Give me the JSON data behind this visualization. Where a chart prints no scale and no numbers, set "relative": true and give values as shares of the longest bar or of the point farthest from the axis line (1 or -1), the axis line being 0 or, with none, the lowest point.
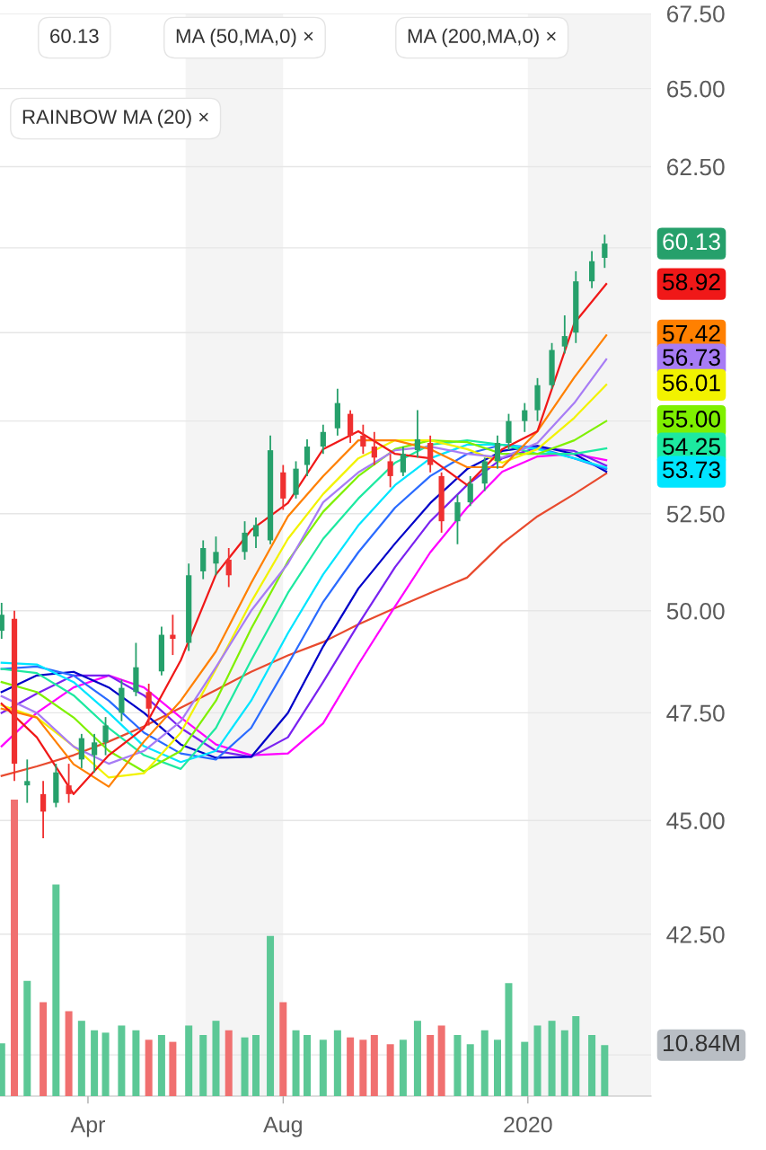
{
  "chart_data": [
    {
      "type": "candlestick",
      "x": [
        "2019-02-06",
        "2019-02-14",
        "2019-02-22",
        "2019-03-04",
        "2019-03-12",
        "2019-03-20",
        "2019-03-28",
        "2019-04-05",
        "2019-04-12",
        "2019-04-22",
        "2019-05-01",
        "2019-05-09",
        "2019-05-17",
        "2019-05-24",
        "2019-06-03",
        "2019-06-12",
        "2019-06-20",
        "2019-06-28",
        "2019-07-08",
        "2019-07-15",
        "2019-07-24",
        "2019-08-01",
        "2019-08-09",
        "2019-08-16",
        "2019-08-26",
        "2019-09-04",
        "2019-09-12",
        "2019-09-20",
        "2019-09-27",
        "2019-10-07",
        "2019-10-15",
        "2019-10-24",
        "2019-11-01",
        "2019-11-08",
        "2019-11-18",
        "2019-11-26",
        "2019-12-05",
        "2019-12-13",
        "2019-12-20",
        "2019-12-30",
        "2020-01-07",
        "2020-01-16",
        "2020-01-24",
        "2020-01-31",
        "2020-02-10",
        "2020-02-18"
      ],
      "ohlc": [
        [
          49.5,
          50.2,
          49.3,
          49.9
        ],
        [
          49.8,
          50.0,
          45.9,
          46.3
        ],
        [
          45.8,
          46.4,
          45.4,
          45.9
        ],
        [
          45.6,
          45.9,
          44.6,
          45.2
        ],
        [
          45.4,
          46.3,
          45.3,
          46.1
        ],
        [
          45.8,
          46.3,
          45.4,
          45.6
        ],
        [
          46.4,
          47.0,
          46.2,
          46.9
        ],
        [
          46.5,
          47.0,
          46.1,
          46.8
        ],
        [
          46.8,
          47.4,
          46.5,
          47.2
        ],
        [
          47.5,
          48.3,
          47.3,
          48.1
        ],
        [
          48.0,
          49.2,
          47.9,
          48.6
        ],
        [
          48.0,
          48.2,
          47.2,
          47.6
        ],
        [
          48.5,
          49.6,
          48.4,
          49.4
        ],
        [
          49.4,
          49.9,
          48.9,
          49.3
        ],
        [
          49.2,
          51.2,
          49.0,
          50.9
        ],
        [
          51.0,
          51.8,
          50.8,
          51.6
        ],
        [
          51.2,
          51.9,
          50.9,
          51.5
        ],
        [
          51.3,
          51.6,
          50.6,
          50.9
        ],
        [
          51.5,
          52.3,
          51.3,
          52.0
        ],
        [
          51.9,
          52.4,
          51.6,
          52.2
        ],
        [
          51.8,
          54.6,
          51.7,
          54.2
        ],
        [
          53.6,
          53.8,
          52.6,
          52.9
        ],
        [
          53.0,
          53.9,
          52.9,
          53.7
        ],
        [
          53.8,
          54.5,
          53.5,
          54.3
        ],
        [
          54.3,
          54.9,
          54.1,
          54.7
        ],
        [
          54.8,
          55.9,
          54.6,
          55.5
        ],
        [
          55.2,
          55.3,
          54.4,
          54.6
        ],
        [
          54.6,
          54.9,
          54.1,
          54.3
        ],
        [
          54.3,
          54.7,
          53.8,
          54.0
        ],
        [
          53.9,
          54.1,
          53.2,
          53.5
        ],
        [
          53.6,
          54.3,
          53.5,
          54.1
        ],
        [
          54.2,
          55.3,
          54.0,
          54.5
        ],
        [
          54.4,
          54.6,
          53.6,
          53.8
        ],
        [
          53.5,
          53.6,
          52.0,
          52.3
        ],
        [
          52.3,
          53.0,
          51.7,
          52.8
        ],
        [
          52.8,
          53.5,
          52.7,
          53.3
        ],
        [
          53.3,
          54.0,
          53.1,
          53.9
        ],
        [
          53.9,
          54.6,
          53.7,
          54.4
        ],
        [
          54.4,
          55.2,
          54.2,
          55.0
        ],
        [
          55.0,
          55.5,
          54.7,
          55.3
        ],
        [
          55.3,
          56.2,
          55.0,
          56.0
        ],
        [
          56.0,
          57.2,
          55.9,
          57.0
        ],
        [
          57.1,
          58.0,
          56.9,
          57.4
        ],
        [
          57.5,
          59.3,
          57.2,
          59.0
        ],
        [
          59.0,
          59.9,
          58.8,
          59.6
        ],
        [
          59.7,
          60.4,
          59.4,
          60.13
        ]
      ],
      "colors": [
        "#26a06b",
        "#ef3030",
        "#26a06b",
        "#ef3030",
        "#26a06b",
        "#ef3030",
        "#26a06b",
        "#26a06b",
        "#26a06b",
        "#26a06b",
        "#26a06b",
        "#ef3030",
        "#26a06b",
        "#ef3030",
        "#26a06b",
        "#26a06b",
        "#26a06b",
        "#ef3030",
        "#26a06b",
        "#26a06b",
        "#26a06b",
        "#ef3030",
        "#26a06b",
        "#26a06b",
        "#26a06b",
        "#26a06b",
        "#ef3030",
        "#ef3030",
        "#ef3030",
        "#ef3030",
        "#26a06b",
        "#26a06b",
        "#ef3030",
        "#ef3030",
        "#26a06b",
        "#26a06b",
        "#26a06b",
        "#26a06b",
        "#26a06b",
        "#26a06b",
        "#26a06b",
        "#26a06b",
        "#26a06b",
        "#26a06b",
        "#26a06b",
        "#26a06b"
      ],
      "series": [
        {
          "type": "line",
          "color": "#e84a2e",
          "x": [
            "2019-02-06",
            "2019-02-28",
            "2019-03-23",
            "2019-04-14",
            "2019-05-06",
            "2019-05-29",
            "2019-06-20",
            "2019-07-12",
            "2019-08-04",
            "2019-08-26",
            "2019-09-17",
            "2019-10-10",
            "2019-11-01",
            "2019-11-24",
            "2019-12-16",
            "2020-01-07",
            "2020-01-30",
            "2020-02-19"
          ],
          "values": [
            46.02,
            46.24,
            46.5,
            46.82,
            47.18,
            47.62,
            48.05,
            48.49,
            48.89,
            49.22,
            49.66,
            50.07,
            50.45,
            50.84,
            51.72,
            52.43,
            53.02,
            53.57
          ]
        },
        {
          "type": "line",
          "color": "#ff00ff",
          "x": [
            "2019-02-06",
            "2019-02-28",
            "2019-03-23",
            "2019-04-14",
            "2019-05-06",
            "2019-05-29",
            "2019-06-20",
            "2019-07-12",
            "2019-08-04",
            "2019-08-26",
            "2019-09-17",
            "2019-10-10",
            "2019-11-01",
            "2019-11-24",
            "2019-12-16",
            "2020-01-07",
            "2020-01-30",
            "2020-02-19"
          ],
          "values": [
            46.71,
            47.5,
            48.11,
            48.4,
            48.11,
            47.39,
            46.75,
            46.5,
            46.54,
            47.25,
            48.67,
            50.11,
            51.49,
            52.66,
            53.62,
            54.03,
            54.1,
            53.93
          ]
        },
        {
          "type": "line",
          "color": "#7a22f0",
          "x": [
            "2019-02-06",
            "2019-02-28",
            "2019-03-23",
            "2019-04-14",
            "2019-05-06",
            "2019-05-29",
            "2019-06-20",
            "2019-07-12",
            "2019-08-04",
            "2019-08-26",
            "2019-09-17",
            "2019-10-10",
            "2019-11-01",
            "2019-11-24",
            "2019-12-16",
            "2020-01-07",
            "2020-01-30",
            "2020-02-19"
          ],
          "values": [
            47.5,
            47.96,
            48.4,
            48.4,
            47.92,
            47.14,
            46.6,
            46.46,
            46.92,
            48.24,
            49.66,
            51.11,
            52.3,
            53.26,
            53.98,
            54.27,
            54.18,
            53.78
          ]
        },
        {
          "type": "line",
          "color": "#0000c8",
          "x": [
            "2019-02-06",
            "2019-02-28",
            "2019-03-23",
            "2019-04-14",
            "2019-05-06",
            "2019-05-29",
            "2019-06-20",
            "2019-07-12",
            "2019-08-04",
            "2019-08-26",
            "2019-09-17",
            "2019-10-10",
            "2019-11-01",
            "2019-11-24",
            "2019-12-16",
            "2020-01-07",
            "2020-01-30",
            "2020-02-19"
          ],
          "values": [
            48.0,
            48.4,
            48.49,
            48.11,
            47.5,
            46.75,
            46.44,
            46.46,
            47.5,
            49.11,
            50.56,
            51.72,
            52.78,
            53.69,
            54.18,
            54.32,
            54.1,
            53.62
          ]
        },
        {
          "type": "line",
          "color": "#2a6bff",
          "x": [
            "2019-02-06",
            "2019-02-28",
            "2019-03-23",
            "2019-04-14",
            "2019-05-06",
            "2019-05-29",
            "2019-06-20",
            "2019-07-12",
            "2019-08-04",
            "2019-08-26",
            "2019-09-17",
            "2019-10-10",
            "2019-11-01",
            "2019-11-24",
            "2019-12-16",
            "2020-01-07",
            "2020-01-30",
            "2020-02-19"
          ],
          "values": [
            48.56,
            48.62,
            48.4,
            47.79,
            47.03,
            46.54,
            46.4,
            47.14,
            48.67,
            50.22,
            51.49,
            52.66,
            53.5,
            54.1,
            54.35,
            54.27,
            53.98,
            53.69
          ]
        },
        {
          "type": "line",
          "color": "#00e5ff",
          "x": [
            "2019-02-06",
            "2019-02-28",
            "2019-03-23",
            "2019-04-14",
            "2019-05-06",
            "2019-05-29",
            "2019-06-20",
            "2019-07-12",
            "2019-08-04",
            "2019-08-26",
            "2019-09-17",
            "2019-10-10",
            "2019-11-01",
            "2019-11-24",
            "2019-12-16",
            "2020-01-07",
            "2020-01-30",
            "2020-02-19"
          ],
          "values": [
            48.71,
            48.67,
            48.24,
            47.5,
            46.71,
            46.34,
            46.6,
            47.79,
            49.44,
            50.92,
            52.19,
            53.26,
            53.98,
            54.35,
            54.35,
            54.23,
            53.98,
            53.73
          ]
        },
        {
          "type": "line",
          "color": "#1de9a0",
          "x": [
            "2019-02-06",
            "2019-02-28",
            "2019-03-23",
            "2019-04-14",
            "2019-05-06",
            "2019-05-29",
            "2019-06-20",
            "2019-07-12",
            "2019-08-04",
            "2019-08-26",
            "2019-09-17",
            "2019-10-10",
            "2019-11-01",
            "2019-11-24",
            "2019-12-16",
            "2020-01-07",
            "2020-01-30",
            "2020-02-19"
          ],
          "values": [
            48.56,
            48.46,
            47.92,
            47.14,
            46.5,
            46.18,
            47.14,
            48.77,
            50.45,
            51.84,
            52.9,
            53.86,
            54.35,
            54.47,
            54.35,
            54.1,
            54.1,
            54.25
          ]
        },
        {
          "type": "line",
          "color": "#7ff000",
          "x": [
            "2019-02-06",
            "2019-02-28",
            "2019-03-23",
            "2019-04-14",
            "2019-05-06",
            "2019-05-29",
            "2019-06-20",
            "2019-07-12",
            "2019-08-04",
            "2019-08-26",
            "2019-09-17",
            "2019-10-10",
            "2019-11-01",
            "2019-11-24",
            "2019-12-16",
            "2020-01-07",
            "2020-01-30",
            "2020-02-19"
          ],
          "values": [
            48.24,
            48.0,
            47.39,
            46.6,
            46.12,
            46.6,
            47.79,
            49.55,
            51.26,
            52.55,
            53.5,
            54.23,
            54.47,
            54.42,
            54.1,
            54.1,
            54.47,
            55.0
          ]
        },
        {
          "type": "line",
          "color": "#f2f200",
          "x": [
            "2019-02-06",
            "2019-02-28",
            "2019-03-23",
            "2019-04-14",
            "2019-05-06",
            "2019-05-29",
            "2019-06-20",
            "2019-07-12",
            "2019-08-04",
            "2019-08-26",
            "2019-09-17",
            "2019-10-10",
            "2019-11-01",
            "2019-11-24",
            "2019-12-16",
            "2020-01-07",
            "2020-01-30",
            "2020-02-19"
          ],
          "values": [
            47.68,
            47.39,
            46.71,
            45.98,
            46.08,
            47.03,
            48.56,
            50.22,
            51.84,
            53.02,
            53.98,
            54.47,
            54.47,
            54.23,
            53.86,
            54.23,
            55.09,
            56.01
          ]
        },
        {
          "type": "line",
          "color": "#a77cf5",
          "x": [
            "2019-02-06",
            "2019-02-28",
            "2019-03-23",
            "2019-04-14",
            "2019-05-06",
            "2019-05-29",
            "2019-06-20",
            "2019-07-12",
            "2019-08-04",
            "2019-08-26",
            "2019-09-17",
            "2019-10-10",
            "2019-11-01",
            "2019-11-24",
            "2019-12-16",
            "2020-01-07",
            "2020-01-30",
            "2020-02-19"
          ],
          "values": [
            47.9,
            47.5,
            46.7,
            46.3,
            46.6,
            47.3,
            48.6,
            50.0,
            51.2,
            52.8,
            53.6,
            54.2,
            54.3,
            54.1,
            54.0,
            54.4,
            55.5,
            56.73
          ]
        },
        {
          "type": "line",
          "color": "#ff8000",
          "x": [
            "2019-02-06",
            "2019-02-28",
            "2019-03-23",
            "2019-04-14",
            "2019-05-06",
            "2019-05-29",
            "2019-06-20",
            "2019-07-12",
            "2019-08-04",
            "2019-08-26",
            "2019-09-17",
            "2019-10-10",
            "2019-11-01",
            "2019-11-24",
            "2019-12-16",
            "2020-01-07",
            "2020-01-30",
            "2020-02-19"
          ],
          "values": [
            47.6,
            47.39,
            46.29,
            45.77,
            46.82,
            47.79,
            48.99,
            50.7,
            52.43,
            53.5,
            54.47,
            54.47,
            54.23,
            53.74,
            53.74,
            54.72,
            56.22,
            57.42
          ]
        },
        {
          "type": "line",
          "color": "#f01818",
          "x": [
            "2019-02-06",
            "2019-02-28",
            "2019-03-23",
            "2019-04-14",
            "2019-05-06",
            "2019-05-29",
            "2019-06-20",
            "2019-07-12",
            "2019-08-04",
            "2019-08-26",
            "2019-09-17",
            "2019-10-10",
            "2019-11-01",
            "2019-11-24",
            "2019-12-16",
            "2020-01-07",
            "2020-01-30",
            "2020-02-19"
          ],
          "values": [
            47.72,
            46.92,
            45.6,
            46.5,
            47.14,
            48.77,
            50.92,
            52.07,
            52.78,
            54.23,
            54.72,
            54.1,
            53.98,
            53.26,
            54.23,
            54.72,
            57.77,
            58.92
          ]
        }
      ],
      "annotations": [
        "60.13",
        "MA (50,MA,0) ×",
        "MA (200,MA,0) ×",
        "RAINBOW MA (20) ×",
        "60.13",
        "58.92",
        "57.42",
        "56.73",
        "56.01",
        "55.00",
        "54.25",
        "53.73"
      ],
      "bands": [
        {
          "axis": "x",
          "from": "2019-06-01",
          "to": "2019-08-01",
          "color": "#f4f4f4"
        },
        {
          "axis": "x",
          "from": "2020-01-01",
          "to": "2020-03-18",
          "color": "#f4f4f4"
        }
      ],
      "log": true,
      "xlim": [
        "2019-02-05",
        "2020-03-18"
      ],
      "xticks": [
        {
          "value": "2019-04-01",
          "label": "Apr"
        },
        {
          "value": "2019-08-01",
          "label": "Aug"
        },
        {
          "value": "2020-01-01",
          "label": "2020"
        }
      ],
      "ylim": [
        39.18,
        67.5
      ],
      "yticks": [
        {
          "value": 40,
          "label": null
        },
        {
          "value": 42.5,
          "label": "42.50"
        },
        {
          "value": 45,
          "label": "45.00"
        },
        {
          "value": 47.5,
          "label": "47.50"
        },
        {
          "value": 50,
          "label": "50.00"
        },
        {
          "value": 52.5,
          "label": "52.50"
        },
        {
          "value": 55,
          "label": null
        },
        {
          "value": 57.5,
          "label": null
        },
        {
          "value": 60,
          "label": null
        },
        {
          "value": 62.5,
          "label": "62.50"
        },
        {
          "value": 65,
          "label": "65.00"
        },
        {
          "value": 67.5,
          "label": "67.50"
        }
      ],
      "grid": "y"
    },
    {
      "type": "bar",
      "x": [
        "2019-02-06",
        "2019-02-14",
        "2019-02-22",
        "2019-03-04",
        "2019-03-12",
        "2019-03-20",
        "2019-03-28",
        "2019-04-05",
        "2019-04-12",
        "2019-04-22",
        "2019-05-01",
        "2019-05-09",
        "2019-05-17",
        "2019-05-24",
        "2019-06-03",
        "2019-06-12",
        "2019-06-20",
        "2019-06-28",
        "2019-07-08",
        "2019-07-15",
        "2019-07-24",
        "2019-08-01",
        "2019-08-09",
        "2019-08-16",
        "2019-08-26",
        "2019-09-04",
        "2019-09-12",
        "2019-09-20",
        "2019-09-27",
        "2019-10-07",
        "2019-10-15",
        "2019-10-24",
        "2019-11-01",
        "2019-11-08",
        "2019-11-18",
        "2019-11-26",
        "2019-12-05",
        "2019-12-13",
        "2019-12-20",
        "2019-12-30",
        "2020-01-07",
        "2020-01-16",
        "2020-01-24",
        "2020-01-31",
        "2020-02-10",
        "2020-02-18"
      ],
      "values": [
        0.178,
        1,
        0.389,
        0.317,
        0.714,
        0.286,
        0.254,
        0.222,
        0.214,
        0.238,
        0.222,
        0.19,
        0.206,
        0.183,
        0.238,
        0.206,
        0.254,
        0.222,
        0.198,
        0.206,
        0.54,
        0.317,
        0.222,
        0.206,
        0.19,
        0.222,
        0.198,
        0.19,
        0.206,
        0.175,
        0.19,
        0.254,
        0.206,
        0.238,
        0.206,
        0.175,
        0.222,
        0.19,
        0.381,
        0.183,
        0.238,
        0.254,
        0.222,
        0.27,
        0.206,
        0.172
      ],
      "relative": true,
      "annotations": [
        "10.84M"
      ],
      "colors": [
        "#5cc896",
        "#f07070",
        "#5cc896",
        "#f07070",
        "#5cc896",
        "#f07070",
        "#5cc896",
        "#5cc896",
        "#5cc896",
        "#5cc896",
        "#5cc896",
        "#f07070",
        "#5cc896",
        "#f07070",
        "#5cc896",
        "#5cc896",
        "#5cc896",
        "#f07070",
        "#5cc896",
        "#5cc896",
        "#5cc896",
        "#f07070",
        "#5cc896",
        "#5cc896",
        "#5cc896",
        "#5cc896",
        "#f07070",
        "#f07070",
        "#f07070",
        "#f07070",
        "#5cc896",
        "#5cc896",
        "#f07070",
        "#f07070",
        "#5cc896",
        "#5cc896",
        "#5cc896",
        "#5cc896",
        "#5cc896",
        "#5cc896",
        "#5cc896",
        "#5cc896",
        "#5cc896",
        "#5cc896",
        "#5cc896",
        "#5cc896"
      ],
      "xlim": [
        "2019-02-05",
        "2020-03-18"
      ],
      "tick_labels": false
    }
  ]
}
